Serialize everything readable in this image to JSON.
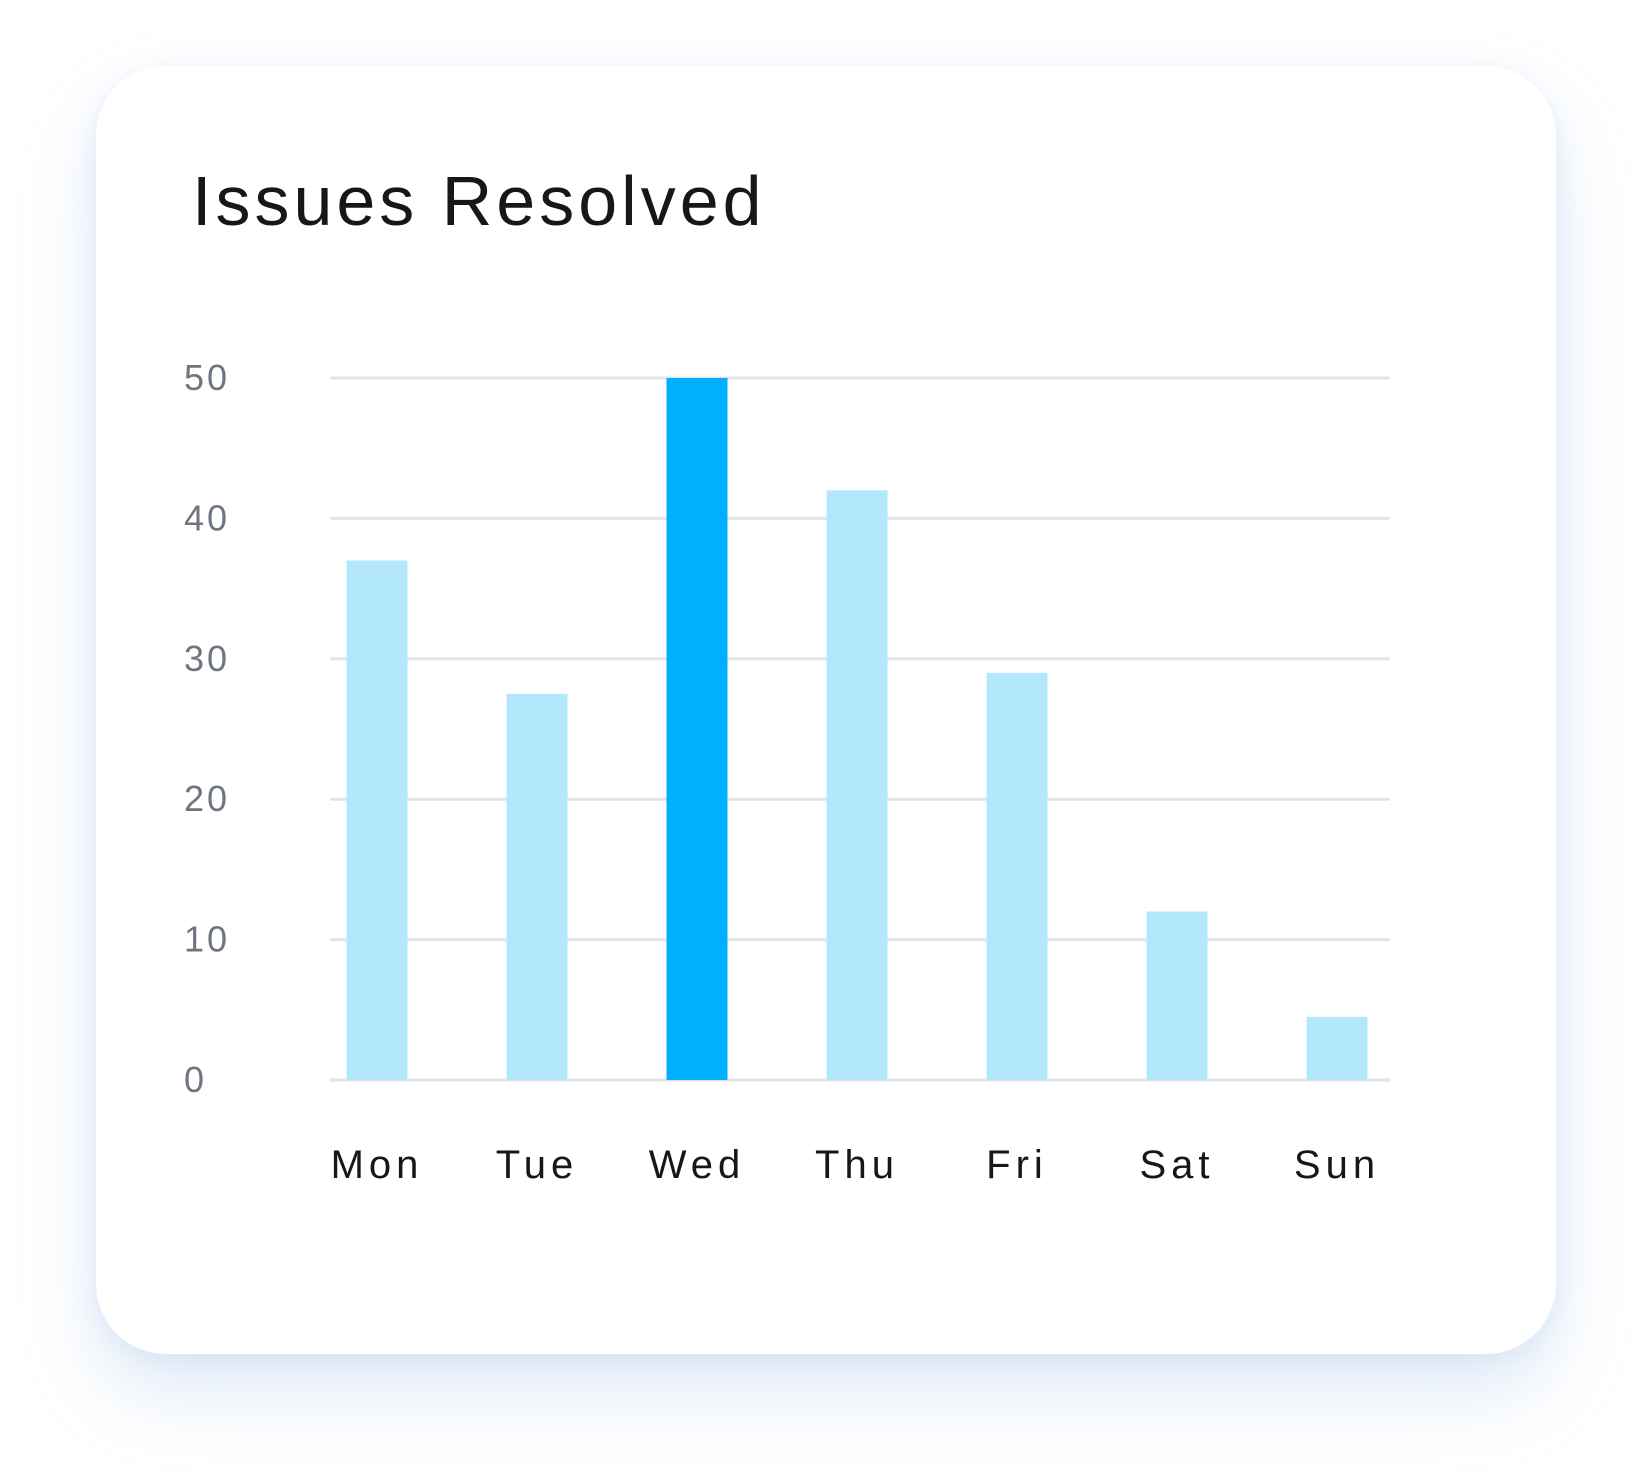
{
  "card": {
    "title": "Issues Resolved"
  },
  "chart_data": {
    "type": "bar",
    "title": "Issues Resolved",
    "xlabel": "",
    "ylabel": "",
    "categories": [
      "Mon",
      "Tue",
      "Wed",
      "Thu",
      "Fri",
      "Sat",
      "Sun"
    ],
    "values": [
      37,
      27.5,
      50,
      42,
      29,
      12,
      4.5
    ],
    "highlight_index": 2,
    "ylim": [
      0,
      50
    ],
    "yticks": [
      0,
      10,
      20,
      30,
      40,
      50
    ],
    "grid": true,
    "colors": {
      "bar": "#b3e7fc",
      "bar_highlight": "#00b0ff",
      "grid": "#e2e4e8"
    }
  }
}
